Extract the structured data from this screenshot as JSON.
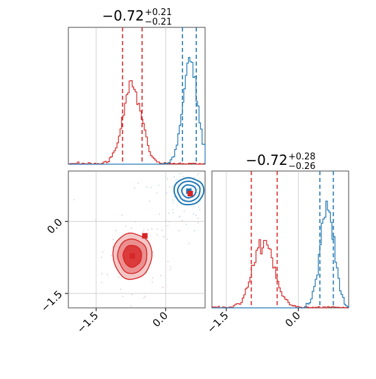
{
  "chart_data": [
    {
      "type": "histogram",
      "panel": "top-left",
      "title": {
        "value": "−0.72",
        "plus": "+0.21",
        "minus": "−0.21"
      },
      "xlim": [
        -2.1,
        0.85
      ],
      "colors": {
        "red": "#d62728",
        "blue": "#1f77b4"
      },
      "series": [
        {
          "color": "red",
          "center": -0.72,
          "sigma": 0.2,
          "quantiles": [
            -0.93,
            -0.51
          ]
        },
        {
          "color": "blue",
          "center": 0.53,
          "sigma": 0.16,
          "quantiles": [
            0.36,
            0.66
          ]
        }
      ],
      "grid": true
    },
    {
      "type": "contour",
      "panel": "bottom-left",
      "xlim": [
        -2.1,
        0.85
      ],
      "ylim": [
        -1.8,
        1.05
      ],
      "xticks": [
        "−1.5",
        "0.0"
      ],
      "yticks": [
        "0.0",
        "−1.5"
      ],
      "xtick_values": [
        -1.5,
        0.0
      ],
      "ytick_values": [
        0.0,
        -1.5
      ],
      "series": [
        {
          "color": "red",
          "center": [
            -0.72,
            -0.72
          ],
          "sigma": [
            0.21,
            0.24
          ],
          "levels": 3,
          "fill": true
        },
        {
          "color": "blue",
          "center": [
            0.5,
            0.63
          ],
          "sigma": [
            0.16,
            0.14
          ],
          "levels": 3,
          "fill": false
        }
      ],
      "markers": [
        {
          "color": "red",
          "x": -0.72,
          "y": -0.72
        },
        {
          "color": "red",
          "x": -0.45,
          "y": -0.3
        },
        {
          "color": "blue",
          "x": 0.5,
          "y": 0.63
        },
        {
          "color": "red",
          "x": 0.53,
          "y": 0.58
        }
      ],
      "grid": true
    },
    {
      "type": "histogram",
      "panel": "bottom-right",
      "title": {
        "value": "−0.72",
        "plus": "+0.28",
        "minus": "−0.26"
      },
      "xlim": [
        -1.8,
        1.05
      ],
      "xticks": [
        "−1.5",
        "0.0"
      ],
      "xtick_values": [
        -1.5,
        0.0
      ],
      "series": [
        {
          "color": "red",
          "center": -0.72,
          "sigma": 0.22,
          "quantiles": [
            -0.98,
            -0.44
          ]
        },
        {
          "color": "blue",
          "center": 0.6,
          "sigma": 0.15,
          "quantiles": [
            0.45,
            0.73
          ]
        }
      ],
      "grid": true
    }
  ]
}
